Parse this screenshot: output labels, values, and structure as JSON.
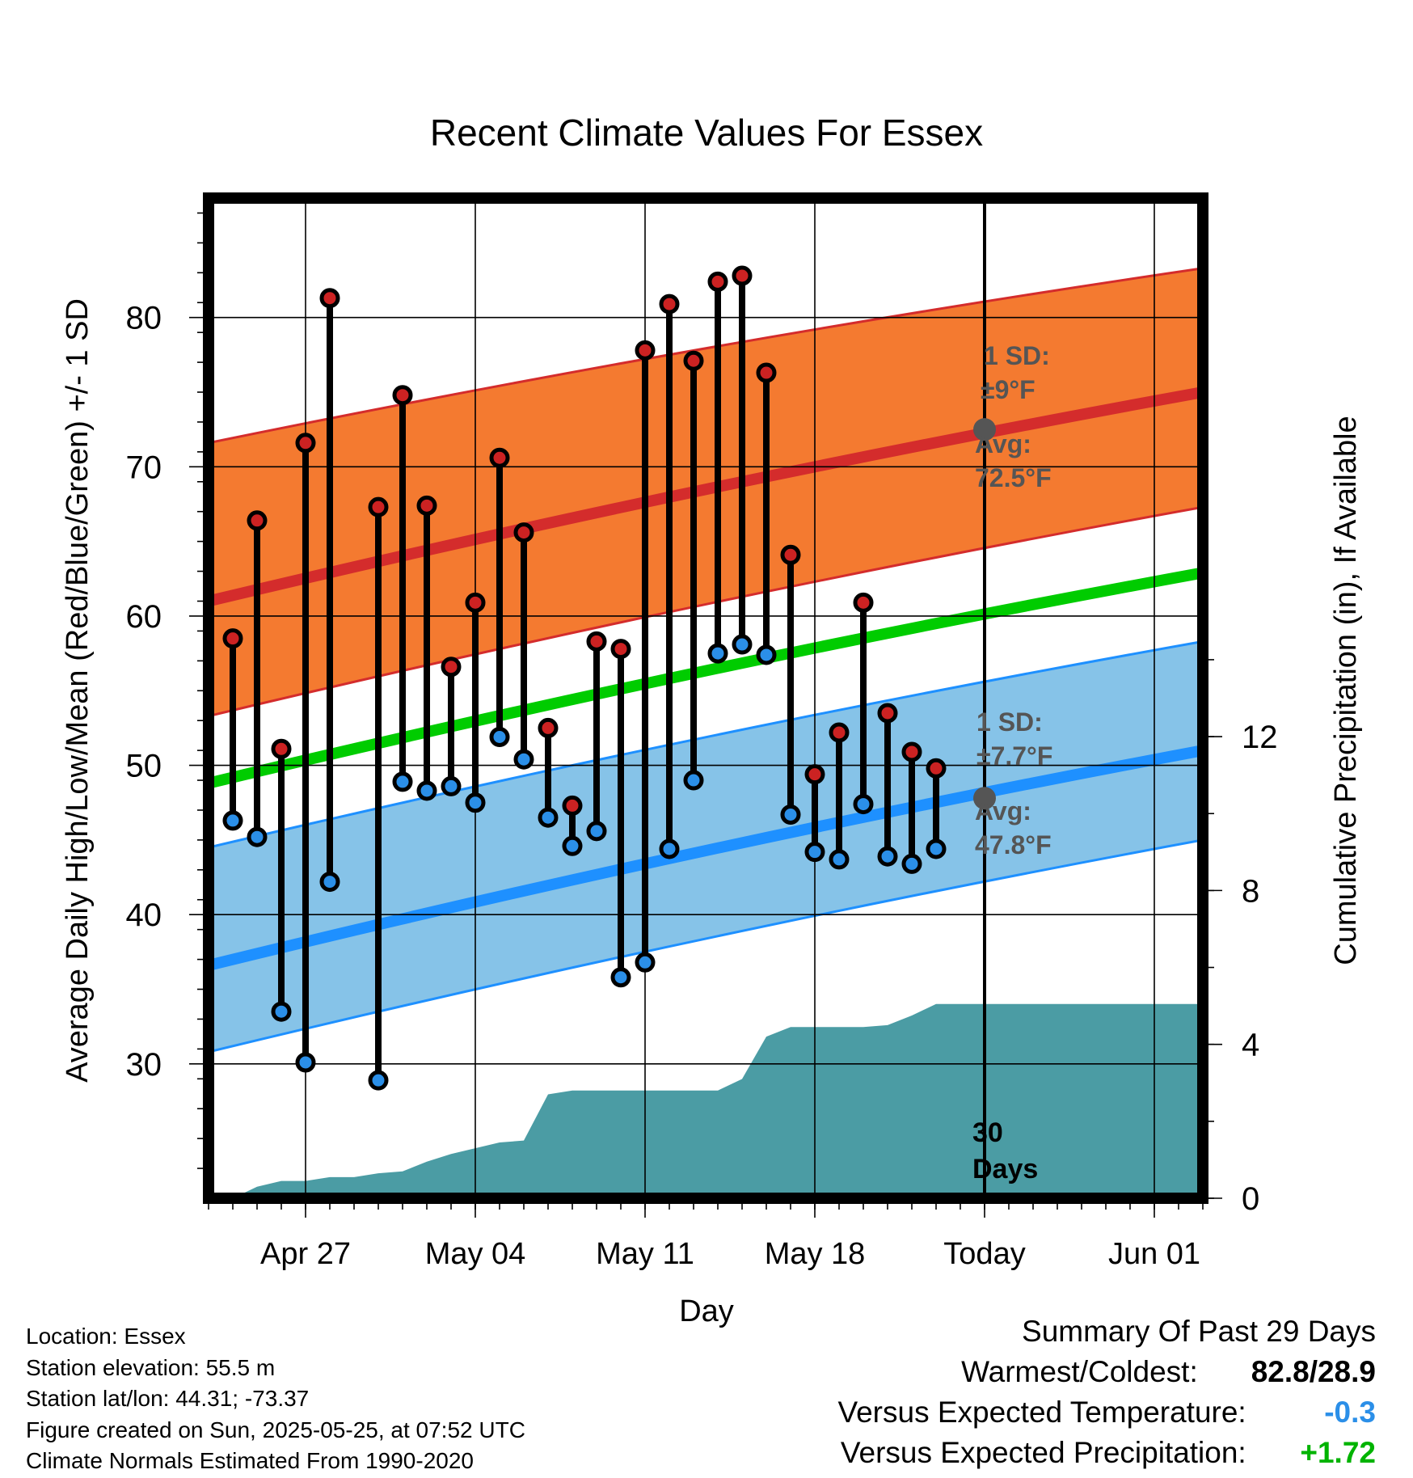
{
  "chart_data": {
    "type": "line",
    "title": "Recent Climate Values For Essex",
    "xlabel": "Day",
    "ylabel": "Average Daily High/Low/Mean (Red/Blue/Green) +/- 1 SD",
    "y2label": "Cumulative Precipitation (in), If Available",
    "x_ticks": [
      "Apr 27",
      "May 04",
      "May 11",
      "May 18",
      "Today",
      "Jun 01"
    ],
    "y_ticks": [
      "30",
      "40",
      "50",
      "60",
      "70",
      "80"
    ],
    "y2_ticks": [
      "0",
      "4",
      "8",
      "12"
    ],
    "ylim": [
      21,
      88
    ],
    "y2lim": [
      0,
      26
    ],
    "xlim": [
      "2025-04-23",
      "2025-06-03"
    ],
    "today": "2025-05-25",
    "grid": true,
    "days": [
      "2025-04-24",
      "2025-04-25",
      "2025-04-26",
      "2025-04-27",
      "2025-04-28",
      "2025-04-29",
      "2025-04-30",
      "2025-05-01",
      "2025-05-02",
      "2025-05-03",
      "2025-05-04",
      "2025-05-05",
      "2025-05-06",
      "2025-05-07",
      "2025-05-08",
      "2025-05-09",
      "2025-05-10",
      "2025-05-11",
      "2025-05-12",
      "2025-05-13",
      "2025-05-14",
      "2025-05-15",
      "2025-05-16",
      "2025-05-17",
      "2025-05-18",
      "2025-05-19",
      "2025-05-20",
      "2025-05-21",
      "2025-05-22",
      "2025-05-23",
      "2025-05-24"
    ],
    "series": [
      {
        "name": "Daily High",
        "color": "#cc2222",
        "values": [
          58.5,
          66.4,
          51.1,
          71.6,
          81.3,
          null,
          67.3,
          74.8,
          67.4,
          56.6,
          60.9,
          70.6,
          65.6,
          52.5,
          47.3,
          58.3,
          57.8,
          77.8,
          80.9,
          77.1,
          82.4,
          82.8,
          76.3,
          64.1,
          49.4,
          52.2,
          60.9,
          53.5,
          50.9,
          49.8,
          null
        ]
      },
      {
        "name": "Daily Low",
        "color": "#2b8fe8",
        "values": [
          46.3,
          45.2,
          33.5,
          30.1,
          42.2,
          null,
          28.9,
          48.9,
          48.3,
          48.6,
          47.5,
          51.9,
          50.4,
          46.5,
          44.6,
          45.6,
          35.8,
          36.8,
          44.4,
          49.0,
          57.5,
          58.1,
          57.4,
          46.7,
          44.2,
          43.7,
          47.4,
          43.9,
          43.4,
          44.4,
          null
        ]
      }
    ],
    "normals": {
      "x": [
        "2025-04-23",
        "2025-06-03"
      ],
      "avg_high": [
        61,
        75
      ],
      "high_sd_band": [
        [
          53.3,
          71.6
        ],
        [
          67.3,
          83.3
        ]
      ],
      "avg_mean": [
        48.8,
        62.9
      ],
      "avg_low": [
        36.6,
        51.0
      ],
      "low_sd_band": [
        [
          30.8,
          44.5
        ],
        [
          45.0,
          58.3
        ]
      ],
      "colors": {
        "high_band": "#f47a30",
        "high_line": "#d42c2c",
        "mean_line": "#00cc00",
        "low_band": "#86c3e8",
        "low_line": "#1e90ff"
      }
    },
    "precipitation": {
      "color": "#4b9ca4",
      "dates": [
        "2025-04-23",
        "2025-04-24",
        "2025-04-25",
        "2025-04-26",
        "2025-04-27",
        "2025-04-28",
        "2025-04-29",
        "2025-04-30",
        "2025-05-01",
        "2025-05-02",
        "2025-05-03",
        "2025-05-04",
        "2025-05-05",
        "2025-05-06",
        "2025-05-07",
        "2025-05-08",
        "2025-05-09",
        "2025-05-10",
        "2025-05-11",
        "2025-05-12",
        "2025-05-13",
        "2025-05-14",
        "2025-05-15",
        "2025-05-16",
        "2025-05-17",
        "2025-05-18",
        "2025-05-19",
        "2025-05-20",
        "2025-05-21",
        "2025-05-22",
        "2025-05-23",
        "2025-05-24",
        "2025-05-25",
        "2025-06-03"
      ],
      "values": [
        0,
        0,
        0.3,
        0.45,
        0.45,
        0.55,
        0.55,
        0.65,
        0.7,
        0.95,
        1.15,
        1.3,
        1.45,
        1.5,
        2.7,
        2.8,
        2.8,
        2.8,
        2.8,
        2.8,
        2.8,
        2.8,
        3.1,
        4.2,
        4.45,
        4.45,
        4.45,
        4.45,
        4.5,
        4.75,
        5.05,
        5.05,
        5.05,
        5.05
      ]
    },
    "annotations": {
      "high_sd": {
        "label": "1 SD:",
        "value": "±9°F"
      },
      "high_avg": {
        "label": "Avg:",
        "value": "72.5°F",
        "y": 72.5
      },
      "low_sd": {
        "label": "1 SD:",
        "value": "±7.7°F"
      },
      "low_avg": {
        "label": "Avg:",
        "value": "47.8°F",
        "y": 47.8
      },
      "period": {
        "line1": "30",
        "line2": "Days"
      }
    }
  },
  "footer": {
    "location": "Location: Essex",
    "elevation": "Station elevation: 55.5 m",
    "latlon": "Station lat/lon: 44.31; -73.37",
    "created": "Figure created on Sun, 2025-05-25, at 07:52 UTC",
    "normals": "Climate Normals Estimated From 1990-2020"
  },
  "summary": {
    "title": "Summary Of Past 29 Days",
    "warmest_label": "Warmest/Coldest:",
    "warmest_value": "82.8/28.9",
    "temp_label": "Versus Expected Temperature:",
    "temp_value": "-0.3",
    "temp_color": "#2b8fe8",
    "precip_label": "Versus Expected Precipitation:",
    "precip_value": "+1.72",
    "precip_color": "#00b300"
  }
}
